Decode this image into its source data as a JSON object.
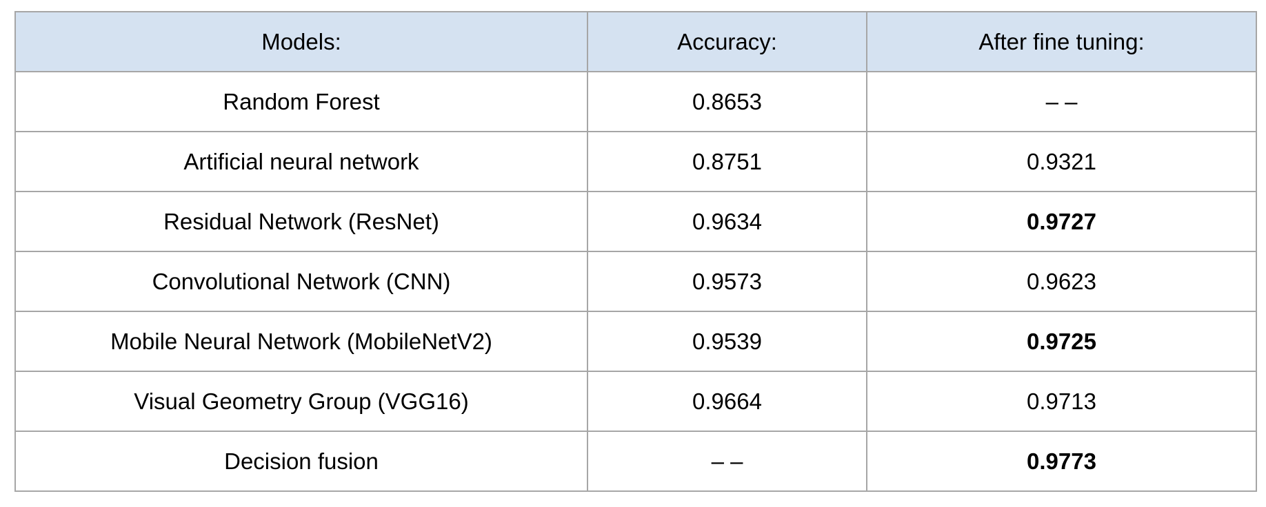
{
  "table": {
    "headers": [
      "Models:",
      "Accuracy:",
      "After fine tuning:"
    ],
    "rows": [
      {
        "model": "Random Forest",
        "accuracy": "0.8653",
        "after_fine_tuning": "– –",
        "ft_bold": false
      },
      {
        "model": "Artificial neural network",
        "accuracy": "0.8751",
        "after_fine_tuning": "0.9321",
        "ft_bold": false
      },
      {
        "model": "Residual Network (ResNet)",
        "accuracy": "0.9634",
        "after_fine_tuning": "0.9727",
        "ft_bold": true
      },
      {
        "model": "Convolutional Network (CNN)",
        "accuracy": "0.9573",
        "after_fine_tuning": "0.9623",
        "ft_bold": false
      },
      {
        "model": "Mobile Neural Network (MobileNetV2)",
        "accuracy": "0.9539",
        "after_fine_tuning": "0.9725",
        "ft_bold": true
      },
      {
        "model": "Visual Geometry Group (VGG16)",
        "accuracy": "0.9664",
        "after_fine_tuning": "0.9713",
        "ft_bold": false
      },
      {
        "model": "Decision fusion",
        "accuracy": "– –",
        "after_fine_tuning": "0.9773",
        "ft_bold": true
      }
    ]
  },
  "colors": {
    "header_background": "#d5e2f1",
    "border": "#a6a6a6"
  }
}
